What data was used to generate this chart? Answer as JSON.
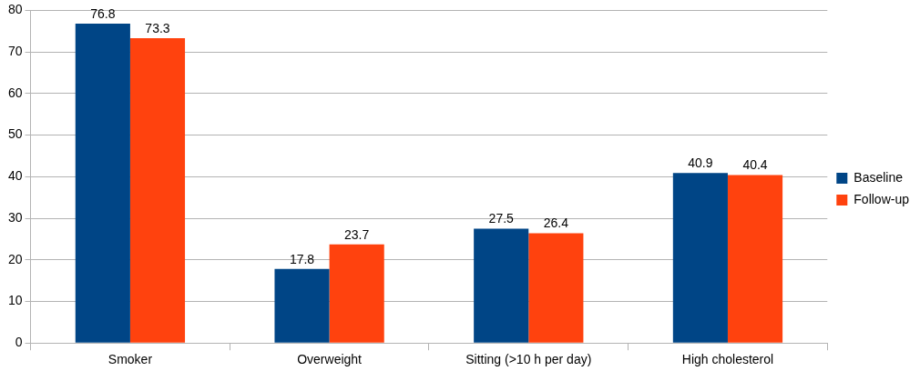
{
  "chart_data": {
    "type": "bar",
    "categories": [
      "Smoker",
      "Overweight",
      "Sitting (>10 h per day)",
      "High cholesterol"
    ],
    "series": [
      {
        "name": "Baseline",
        "color": "#004586",
        "values": [
          76.8,
          17.8,
          27.5,
          40.9
        ]
      },
      {
        "name": "Follow-up",
        "color": "#ff420e",
        "values": [
          73.3,
          23.7,
          26.4,
          40.4
        ]
      }
    ],
    "ylim": [
      0,
      80
    ],
    "yticks": [
      0,
      10,
      20,
      30,
      40,
      50,
      60,
      70,
      80
    ],
    "grid": "y",
    "legend": "right",
    "data_labels": true
  }
}
